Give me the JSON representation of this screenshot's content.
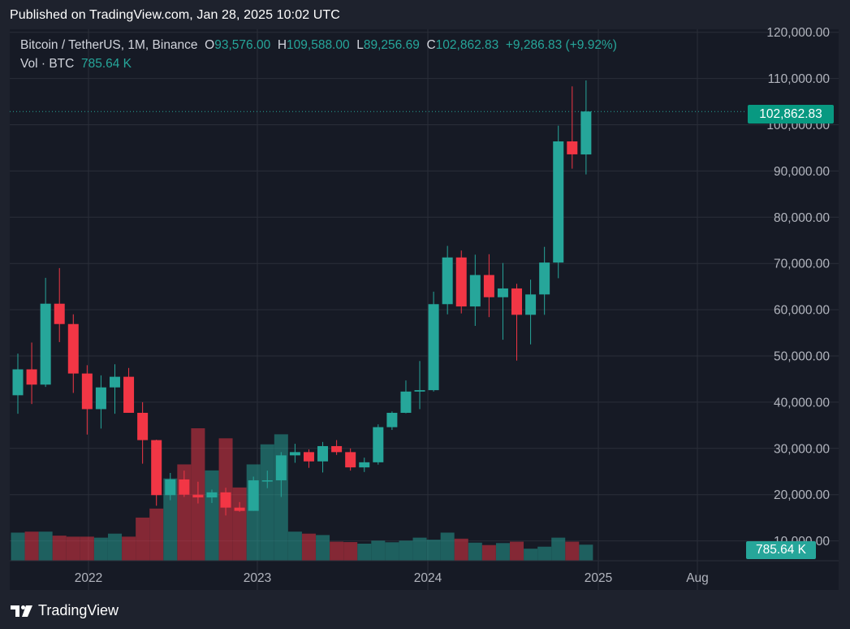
{
  "published": "Published on TradingView.com, Jan 28, 2025 10:02 UTC",
  "legend": {
    "symbol": "Bitcoin / TetherUS, 1M, Binance",
    "o_label": "O",
    "o": "93,576.00",
    "h_label": "H",
    "h": "109,588.00",
    "l_label": "L",
    "l": "89,256.69",
    "c_label": "C",
    "c": "102,862.83",
    "change": "+9,286.83 (+9.92%)",
    "vol_label": "Vol · BTC",
    "vol": "785.64 K"
  },
  "last_price_tag": "102,862.83",
  "volume_tag": "785.64 K",
  "brand": "TradingView",
  "colors": {
    "up": "#26a69a",
    "down": "#f23645",
    "bg": "#161a25",
    "grid": "#2a2e39"
  },
  "chart_data": {
    "type": "candlestick",
    "interval": "1M",
    "x_labels": [
      "2022",
      "2023",
      "2024",
      "2025",
      "Aug"
    ],
    "y_ticks": [
      "120,000.00",
      "110,000.00",
      "100,000.00",
      "90,000.00",
      "80,000.00",
      "70,000.00",
      "60,000.00",
      "50,000.00",
      "40,000.00",
      "30,000.00",
      "20,000.00",
      "10,000.00"
    ],
    "y_tick_values": [
      120000,
      110000,
      100000,
      90000,
      80000,
      70000,
      60000,
      50000,
      40000,
      30000,
      20000,
      10000
    ],
    "ylim": [
      0,
      123000
    ],
    "last_price": 102862.83,
    "candles": [
      {
        "o": 41500,
        "h": 50500,
        "l": 37500,
        "c": 47100
      },
      {
        "o": 47100,
        "h": 52900,
        "l": 39600,
        "c": 43800
      },
      {
        "o": 43800,
        "h": 66900,
        "l": 43300,
        "c": 61300
      },
      {
        "o": 61300,
        "h": 69000,
        "l": 53000,
        "c": 56900
      },
      {
        "o": 56900,
        "h": 59000,
        "l": 42000,
        "c": 46200
      },
      {
        "o": 46200,
        "h": 48000,
        "l": 33000,
        "c": 38500
      },
      {
        "o": 38500,
        "h": 45800,
        "l": 34300,
        "c": 43200
      },
      {
        "o": 43200,
        "h": 48200,
        "l": 37500,
        "c": 45500
      },
      {
        "o": 45500,
        "h": 47400,
        "l": 37700,
        "c": 37700
      },
      {
        "o": 37700,
        "h": 40000,
        "l": 26700,
        "c": 31800
      },
      {
        "o": 31800,
        "h": 31900,
        "l": 17600,
        "c": 19900
      },
      {
        "o": 19900,
        "h": 24700,
        "l": 18800,
        "c": 23300
      },
      {
        "o": 23300,
        "h": 25200,
        "l": 19500,
        "c": 20000
      },
      {
        "o": 20000,
        "h": 22800,
        "l": 18100,
        "c": 19400
      },
      {
        "o": 19400,
        "h": 21100,
        "l": 18200,
        "c": 20500
      },
      {
        "o": 20500,
        "h": 21500,
        "l": 15500,
        "c": 17200
      },
      {
        "o": 17200,
        "h": 18400,
        "l": 16300,
        "c": 16500
      },
      {
        "o": 16500,
        "h": 23900,
        "l": 16500,
        "c": 23100
      },
      {
        "o": 23100,
        "h": 25200,
        "l": 21400,
        "c": 23100
      },
      {
        "o": 23100,
        "h": 29200,
        "l": 19500,
        "c": 28500
      },
      {
        "o": 28500,
        "h": 31000,
        "l": 26900,
        "c": 29200
      },
      {
        "o": 29200,
        "h": 29800,
        "l": 25800,
        "c": 27200
      },
      {
        "o": 27200,
        "h": 31400,
        "l": 24800,
        "c": 30500
      },
      {
        "o": 30500,
        "h": 31800,
        "l": 28600,
        "c": 29200
      },
      {
        "o": 29200,
        "h": 30000,
        "l": 25200,
        "c": 25900
      },
      {
        "o": 25900,
        "h": 28000,
        "l": 24900,
        "c": 27000
      },
      {
        "o": 27000,
        "h": 35200,
        "l": 26500,
        "c": 34600
      },
      {
        "o": 34600,
        "h": 38000,
        "l": 34000,
        "c": 37700
      },
      {
        "o": 37700,
        "h": 44700,
        "l": 37600,
        "c": 42300
      },
      {
        "o": 42300,
        "h": 48900,
        "l": 38500,
        "c": 42600
      },
      {
        "o": 42600,
        "h": 63900,
        "l": 42300,
        "c": 61200
      },
      {
        "o": 61200,
        "h": 73800,
        "l": 59000,
        "c": 71300
      },
      {
        "o": 71300,
        "h": 72800,
        "l": 59200,
        "c": 60700
      },
      {
        "o": 60700,
        "h": 71900,
        "l": 56500,
        "c": 67500
      },
      {
        "o": 67500,
        "h": 72000,
        "l": 58400,
        "c": 62700
      },
      {
        "o": 62700,
        "h": 70100,
        "l": 53500,
        "c": 64600
      },
      {
        "o": 64600,
        "h": 65600,
        "l": 49000,
        "c": 58900
      },
      {
        "o": 58900,
        "h": 66500,
        "l": 52500,
        "c": 63300
      },
      {
        "o": 63300,
        "h": 73600,
        "l": 58900,
        "c": 70200
      },
      {
        "o": 70200,
        "h": 99800,
        "l": 66800,
        "c": 96400
      },
      {
        "o": 96400,
        "h": 108300,
        "l": 90500,
        "c": 93600
      },
      {
        "o": 93576,
        "h": 109588,
        "l": 89256.69,
        "c": 102862.83
      }
    ],
    "volumes": [
      14,
      14.5,
      14.5,
      12.5,
      12,
      12,
      11.5,
      13.5,
      12,
      21.5,
      26,
      41,
      48,
      66,
      45,
      61,
      36.5,
      48,
      58,
      63,
      14.5,
      13.5,
      12.8,
      9.5,
      9.3,
      8.5,
      10,
      9.2,
      10,
      11.5,
      10.5,
      14,
      11,
      9,
      7.8,
      8.8,
      9.5,
      6,
      7,
      11.5,
      9.5,
      8
    ]
  }
}
